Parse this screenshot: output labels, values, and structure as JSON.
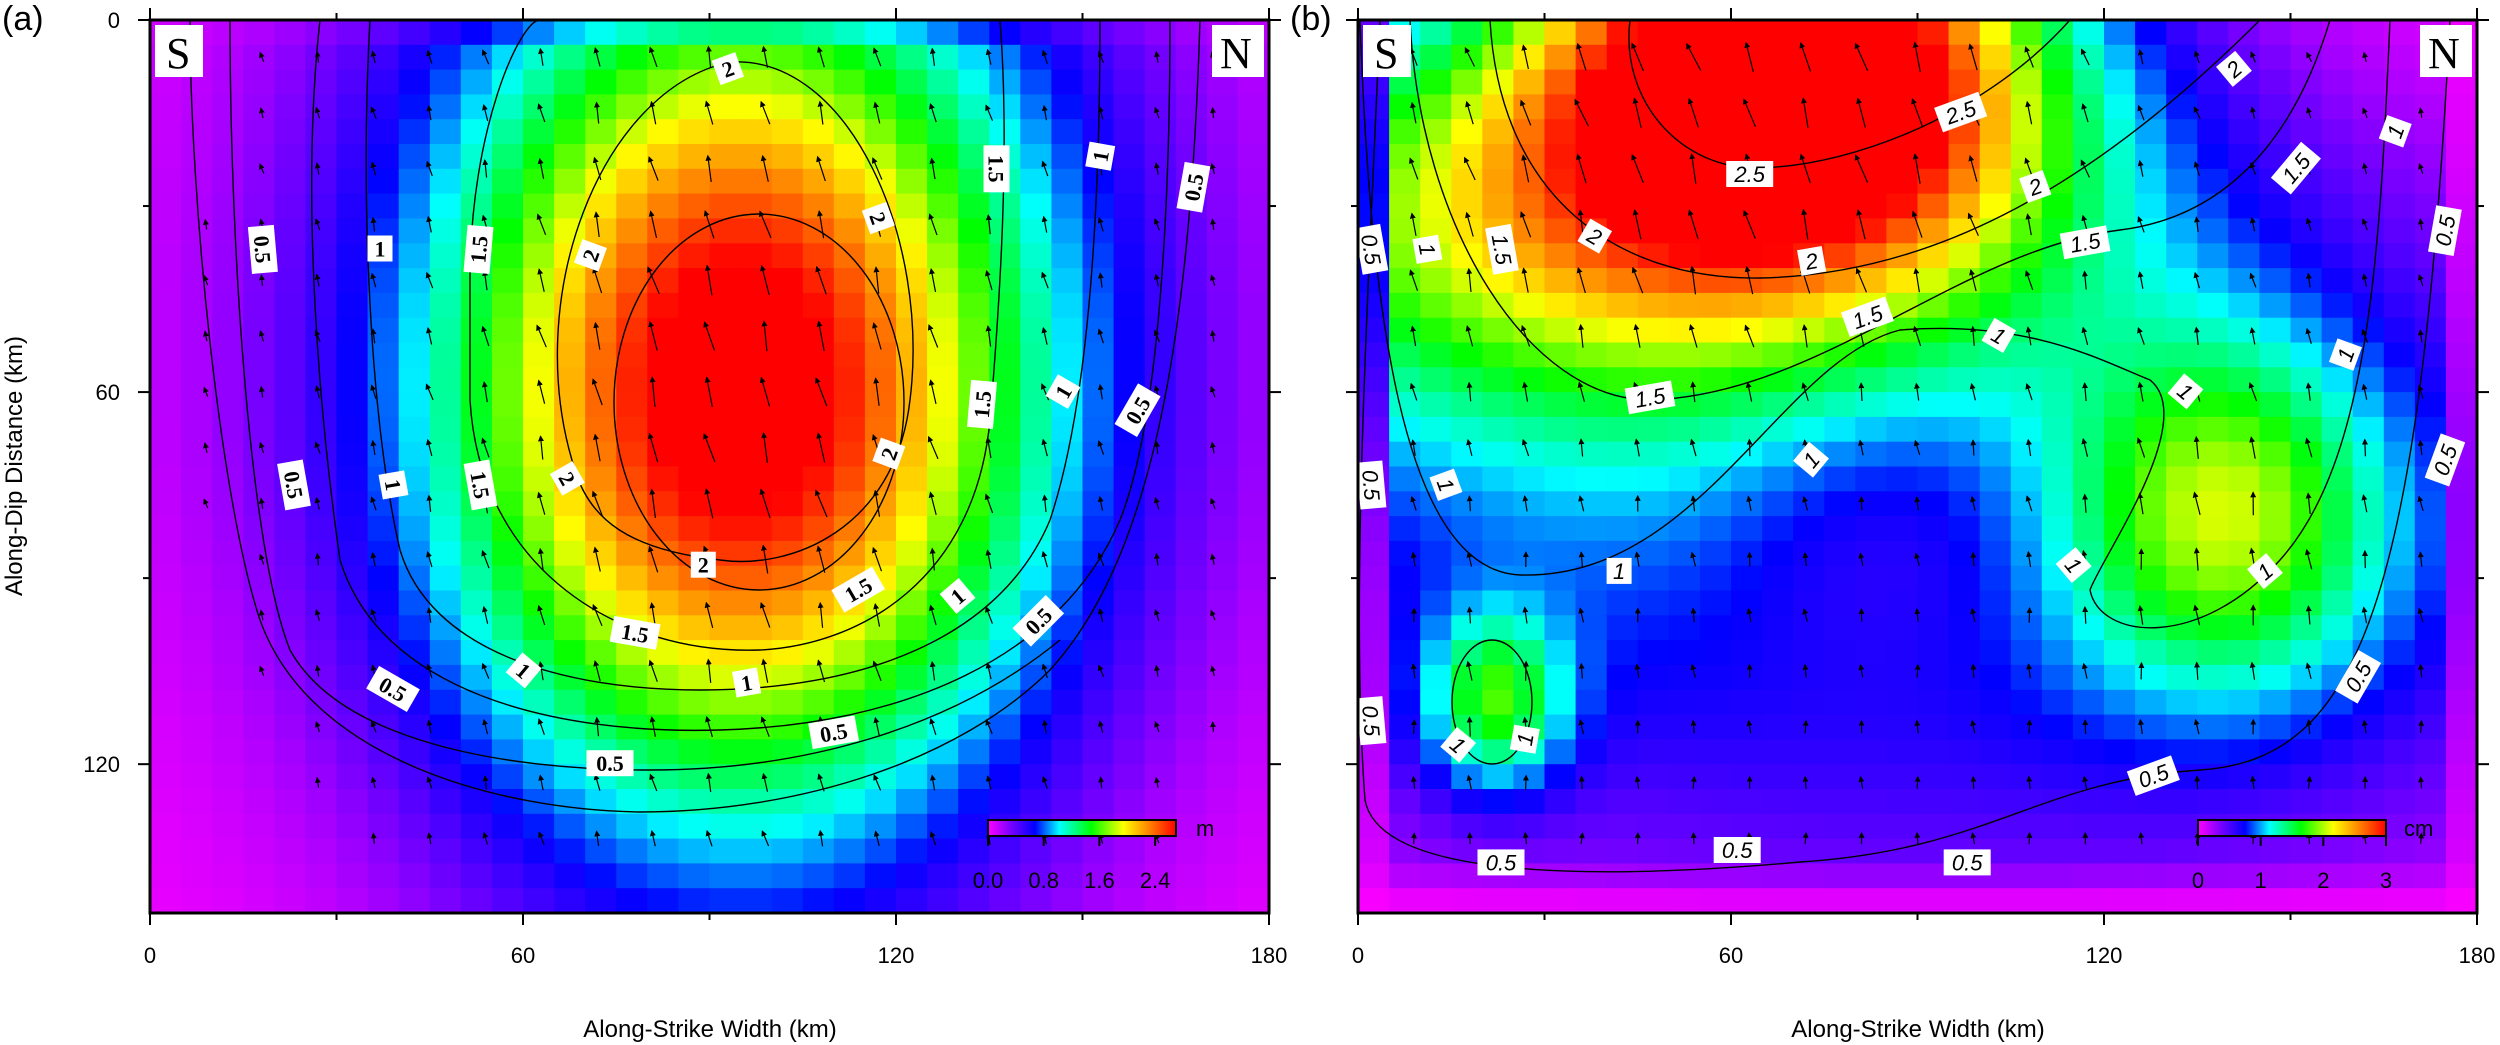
{
  "chart_data": [
    {
      "type": "heatmap",
      "panel_label": "(a)",
      "xlabel": "Along-Strike Width (km)",
      "ylabel": "Along-Dip Distance (km)",
      "xlim": [
        0,
        180
      ],
      "ylim": [
        0,
        144
      ],
      "y_inverted": true,
      "xticks": [
        "0",
        "60",
        "120",
        "180"
      ],
      "yticks": [
        "0",
        "60",
        "120"
      ],
      "corner_left": "S",
      "corner_right": "N",
      "colorbar": {
        "unit": "m",
        "min": 0.0,
        "max": 2.7,
        "ticks": [
          "0.0",
          "0.8",
          "1.6",
          "2.4"
        ]
      },
      "peak": {
        "x": 95,
        "y": 60,
        "value": 2.7
      },
      "contour_levels": [
        0.5,
        1,
        1.5,
        2
      ],
      "contour_labels": [
        {
          "text": "2",
          "x": 93,
          "y": 8,
          "rot": -20
        },
        {
          "text": "2",
          "x": 117,
          "y": 32,
          "rot": 70
        },
        {
          "text": "2",
          "x": 71,
          "y": 38,
          "rot": -70
        },
        {
          "text": "2",
          "x": 119,
          "y": 70,
          "rot": -70
        },
        {
          "text": "2",
          "x": 67,
          "y": 74,
          "rot": 60
        },
        {
          "text": "2",
          "x": 89,
          "y": 88,
          "rot": 0
        },
        {
          "text": "1.5",
          "x": 136,
          "y": 24,
          "rot": 90
        },
        {
          "text": "1.5",
          "x": 53,
          "y": 37,
          "rot": -85
        },
        {
          "text": "1.5",
          "x": 134,
          "y": 62,
          "rot": -85
        },
        {
          "text": "1.5",
          "x": 53,
          "y": 75,
          "rot": 80
        },
        {
          "text": "1.5",
          "x": 114,
          "y": 92,
          "rot": -30
        },
        {
          "text": "1.5",
          "x": 78,
          "y": 99,
          "rot": 10
        },
        {
          "text": "1",
          "x": 153,
          "y": 22,
          "rot": -80
        },
        {
          "text": "1",
          "x": 37,
          "y": 37,
          "rot": 0
        },
        {
          "text": "1",
          "x": 147,
          "y": 60,
          "rot": -60
        },
        {
          "text": "1",
          "x": 39,
          "y": 75,
          "rot": 80
        },
        {
          "text": "1",
          "x": 130,
          "y": 93,
          "rot": -40
        },
        {
          "text": "1",
          "x": 60,
          "y": 105,
          "rot": 40
        },
        {
          "text": "1",
          "x": 96,
          "y": 107,
          "rot": -10
        },
        {
          "text": "0.5",
          "x": 168,
          "y": 27,
          "rot": -80
        },
        {
          "text": "0.5",
          "x": 18,
          "y": 37,
          "rot": 85
        },
        {
          "text": "0.5",
          "x": 159,
          "y": 63,
          "rot": -60
        },
        {
          "text": "0.5",
          "x": 23,
          "y": 75,
          "rot": 80
        },
        {
          "text": "0.5",
          "x": 143,
          "y": 97,
          "rot": -45
        },
        {
          "text": "0.5",
          "x": 39,
          "y": 108,
          "rot": 30
        },
        {
          "text": "0.5",
          "x": 110,
          "y": 115,
          "rot": -10
        },
        {
          "text": "0.5",
          "x": 74,
          "y": 120,
          "rot": 0
        }
      ]
    },
    {
      "type": "heatmap",
      "panel_label": "(b)",
      "xlabel": "Along-Strike Width (km)",
      "ylabel": "",
      "xlim": [
        0,
        180
      ],
      "ylim": [
        0,
        144
      ],
      "y_inverted": true,
      "xticks": [
        "0",
        "60",
        "120",
        "180"
      ],
      "yticks": [],
      "corner_left": "S",
      "corner_right": "N",
      "colorbar": {
        "unit": "cm",
        "min": 0,
        "max": 3,
        "ticks": [
          "0",
          "1",
          "2",
          "3"
        ]
      },
      "contour_levels": [
        0.5,
        1,
        1.5,
        2,
        2.5
      ],
      "contour_labels": [
        {
          "text": "2.5",
          "x": 97,
          "y": 15,
          "rot": -20
        },
        {
          "text": "2.5",
          "x": 63,
          "y": 25,
          "rot": 0
        },
        {
          "text": "2",
          "x": 141,
          "y": 8,
          "rot": -40
        },
        {
          "text": "2",
          "x": 109,
          "y": 27,
          "rot": -20
        },
        {
          "text": "2",
          "x": 38,
          "y": 35,
          "rot": 30
        },
        {
          "text": "2",
          "x": 73,
          "y": 39,
          "rot": -10
        },
        {
          "text": "1.5",
          "x": 151,
          "y": 24,
          "rot": -50
        },
        {
          "text": "1.5",
          "x": 23,
          "y": 37,
          "rot": 80
        },
        {
          "text": "1.5",
          "x": 117,
          "y": 36,
          "rot": -10
        },
        {
          "text": "1.5",
          "x": 82,
          "y": 48,
          "rot": -20
        },
        {
          "text": "1.5",
          "x": 47,
          "y": 61,
          "rot": -10
        },
        {
          "text": "1",
          "x": 167,
          "y": 18,
          "rot": -70
        },
        {
          "text": "1",
          "x": 11,
          "y": 37,
          "rot": 80
        },
        {
          "text": "1",
          "x": 103,
          "y": 51,
          "rot": 30
        },
        {
          "text": "1",
          "x": 159,
          "y": 54,
          "rot": -70
        },
        {
          "text": "1",
          "x": 133,
          "y": 60,
          "rot": 40
        },
        {
          "text": "1",
          "x": 73,
          "y": 71,
          "rot": -50
        },
        {
          "text": "1",
          "x": 14,
          "y": 75,
          "rot": 70
        },
        {
          "text": "1",
          "x": 42,
          "y": 89,
          "rot": 0
        },
        {
          "text": "1",
          "x": 115,
          "y": 88,
          "rot": 50
        },
        {
          "text": "1",
          "x": 146,
          "y": 89,
          "rot": -40
        },
        {
          "text": "1",
          "x": 16,
          "y": 117,
          "rot": 40
        },
        {
          "text": "1",
          "x": 27,
          "y": 116,
          "rot": -80
        },
        {
          "text": "0.5",
          "x": 175,
          "y": 34,
          "rot": -80
        },
        {
          "text": "0.5",
          "x": 2,
          "y": 37,
          "rot": 80
        },
        {
          "text": "0.5",
          "x": 2,
          "y": 75,
          "rot": 85
        },
        {
          "text": "0.5",
          "x": 175,
          "y": 71,
          "rot": -70
        },
        {
          "text": "0.5",
          "x": 161,
          "y": 106,
          "rot": -60
        },
        {
          "text": "0.5",
          "x": 2,
          "y": 113,
          "rot": 85
        },
        {
          "text": "0.5",
          "x": 128,
          "y": 122,
          "rot": -20
        },
        {
          "text": "0.5",
          "x": 23,
          "y": 136,
          "rot": 0
        },
        {
          "text": "0.5",
          "x": 61,
          "y": 134,
          "rot": 0
        },
        {
          "text": "0.5",
          "x": 98,
          "y": 136,
          "rot": 0
        }
      ]
    }
  ]
}
